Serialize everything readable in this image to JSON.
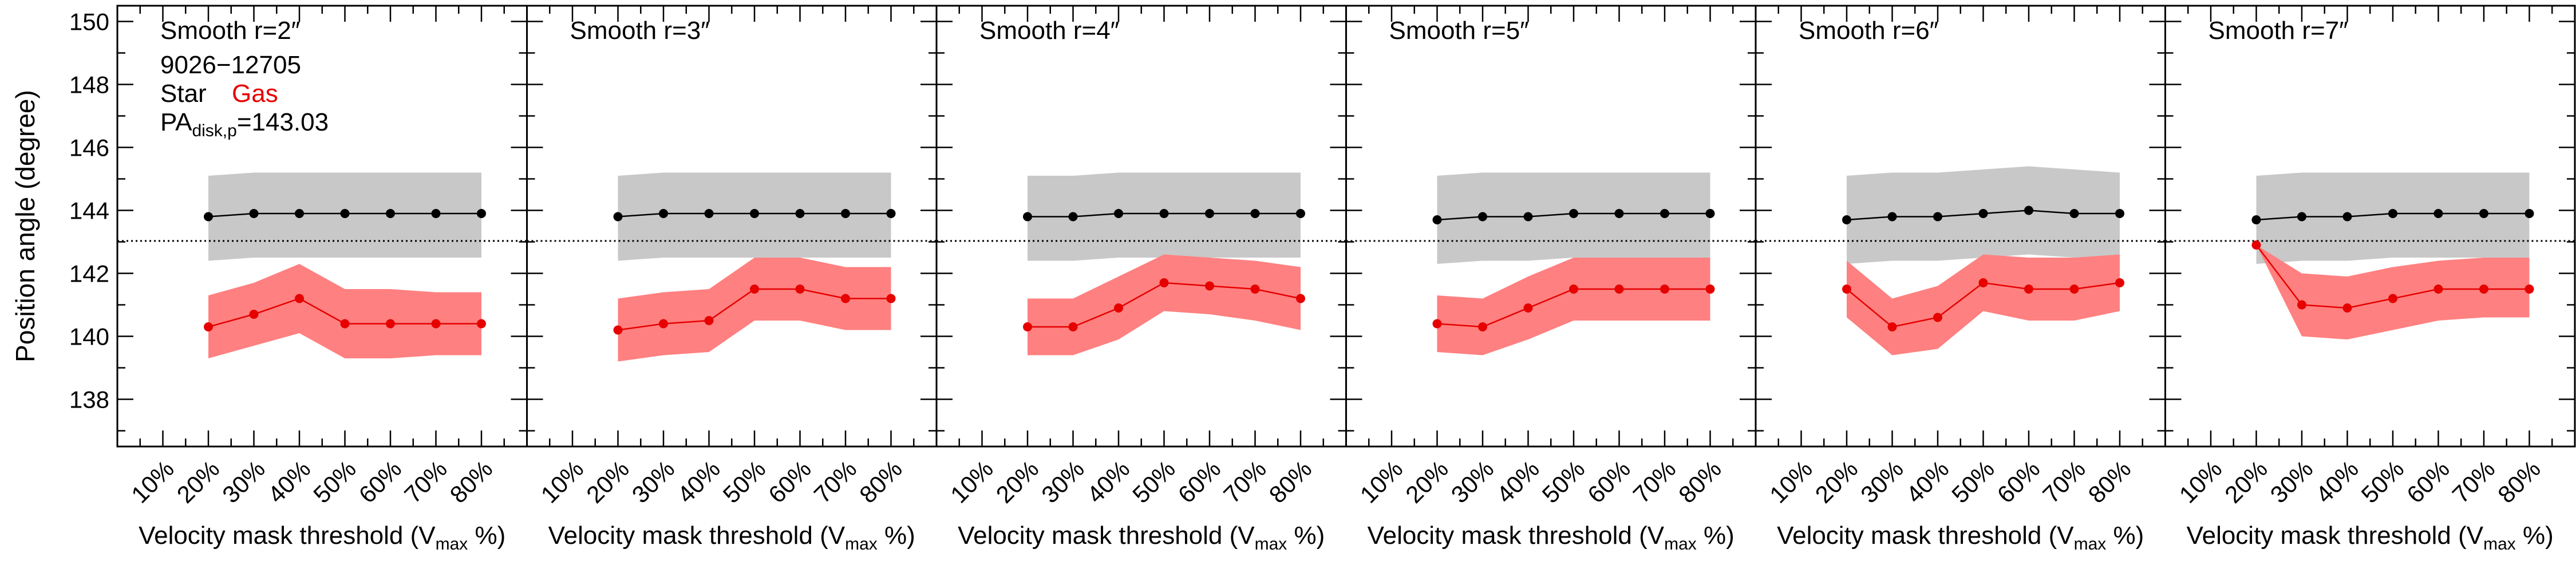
{
  "figure": {
    "ylabel": "Position angle (degree)",
    "xlabel_prefix": "Velocity mask threshold (V",
    "xlabel_sub": "max",
    "xlabel_suffix": " %)",
    "info": {
      "id": "9026−12705",
      "star": "Star",
      "gas": "Gas",
      "pa_prefix": "PA",
      "pa_sub": "disk,p",
      "pa_value": "=143.03"
    },
    "colors": {
      "star": "#000000",
      "gas": "#e60000",
      "star_band": "#c8c8c8",
      "gas_band": "#ff8080"
    }
  },
  "chart_data": {
    "type": "line",
    "ylim": [
      136.5,
      150.5
    ],
    "y_ticks": [
      138,
      140,
      142,
      144,
      146,
      148,
      150
    ],
    "x_categories": [
      "10%",
      "20%",
      "30%",
      "40%",
      "50%",
      "60%",
      "70%",
      "80%"
    ],
    "x_values": [
      10,
      20,
      30,
      40,
      50,
      60,
      70,
      80
    ],
    "reference_line": 143.03,
    "panels": [
      {
        "title": "Smooth r=2″",
        "star": [
          143.8,
          143.9,
          143.9,
          143.9,
          143.9,
          143.9,
          143.9
        ],
        "star_low": [
          142.4,
          142.5,
          142.5,
          142.5,
          142.5,
          142.5,
          142.5
        ],
        "star_high": [
          145.1,
          145.2,
          145.2,
          145.2,
          145.2,
          145.2,
          145.2
        ],
        "gas": [
          140.3,
          140.7,
          141.2,
          140.4,
          140.4,
          140.4,
          140.4
        ],
        "gas_low": [
          139.3,
          139.7,
          140.1,
          139.3,
          139.3,
          139.4,
          139.4
        ],
        "gas_high": [
          141.3,
          141.7,
          142.3,
          141.5,
          141.5,
          141.4,
          141.4
        ]
      },
      {
        "title": "Smooth r=3″",
        "star": [
          143.8,
          143.9,
          143.9,
          143.9,
          143.9,
          143.9,
          143.9
        ],
        "star_low": [
          142.4,
          142.5,
          142.5,
          142.5,
          142.5,
          142.5,
          142.5
        ],
        "star_high": [
          145.1,
          145.2,
          145.2,
          145.2,
          145.2,
          145.2,
          145.2
        ],
        "gas": [
          140.2,
          140.4,
          140.5,
          141.5,
          141.5,
          141.2,
          141.2
        ],
        "gas_low": [
          139.2,
          139.4,
          139.5,
          140.5,
          140.5,
          140.2,
          140.2
        ],
        "gas_high": [
          141.2,
          141.4,
          141.5,
          142.5,
          142.5,
          142.2,
          142.2
        ]
      },
      {
        "title": "Smooth r=4″",
        "star": [
          143.8,
          143.8,
          143.9,
          143.9,
          143.9,
          143.9,
          143.9
        ],
        "star_low": [
          142.4,
          142.4,
          142.5,
          142.5,
          142.5,
          142.5,
          142.5
        ],
        "star_high": [
          145.1,
          145.1,
          145.2,
          145.2,
          145.2,
          145.2,
          145.2
        ],
        "gas": [
          140.3,
          140.3,
          140.9,
          141.7,
          141.6,
          141.5,
          141.2
        ],
        "gas_low": [
          139.4,
          139.4,
          139.9,
          140.8,
          140.7,
          140.5,
          140.2
        ],
        "gas_high": [
          141.2,
          141.2,
          141.9,
          142.6,
          142.5,
          142.4,
          142.2
        ]
      },
      {
        "title": "Smooth r=5″",
        "star": [
          143.7,
          143.8,
          143.8,
          143.9,
          143.9,
          143.9,
          143.9
        ],
        "star_low": [
          142.3,
          142.4,
          142.4,
          142.5,
          142.5,
          142.5,
          142.5
        ],
        "star_high": [
          145.1,
          145.2,
          145.2,
          145.2,
          145.2,
          145.2,
          145.2
        ],
        "gas": [
          140.4,
          140.3,
          140.9,
          141.5,
          141.5,
          141.5,
          141.5
        ],
        "gas_low": [
          139.5,
          139.4,
          139.9,
          140.5,
          140.5,
          140.5,
          140.5
        ],
        "gas_high": [
          141.3,
          141.2,
          141.9,
          142.5,
          142.5,
          142.5,
          142.5
        ]
      },
      {
        "title": "Smooth r=6″",
        "star": [
          143.7,
          143.8,
          143.8,
          143.9,
          144.0,
          143.9,
          143.9
        ],
        "star_low": [
          142.3,
          142.4,
          142.4,
          142.5,
          142.6,
          142.5,
          142.5
        ],
        "star_high": [
          145.1,
          145.2,
          145.2,
          145.3,
          145.4,
          145.3,
          145.2
        ],
        "gas": [
          141.5,
          140.3,
          140.6,
          141.7,
          141.5,
          141.5,
          141.7
        ],
        "gas_low": [
          140.6,
          139.4,
          139.6,
          140.8,
          140.5,
          140.5,
          140.8
        ],
        "gas_high": [
          142.4,
          141.2,
          141.6,
          142.6,
          142.5,
          142.5,
          142.6
        ]
      },
      {
        "title": "Smooth r=7″",
        "star": [
          143.7,
          143.8,
          143.8,
          143.9,
          143.9,
          143.9,
          143.9
        ],
        "star_low": [
          142.3,
          142.4,
          142.4,
          142.5,
          142.5,
          142.5,
          142.5
        ],
        "star_high": [
          145.1,
          145.2,
          145.2,
          145.2,
          145.2,
          145.2,
          145.2
        ],
        "gas": [
          142.9,
          141.0,
          140.9,
          141.2,
          141.5,
          141.5,
          141.5
        ],
        "gas_low": [
          142.9,
          140.0,
          139.9,
          140.2,
          140.5,
          140.6,
          140.6
        ],
        "gas_high": [
          142.9,
          142.0,
          141.9,
          142.2,
          142.4,
          142.5,
          142.5
        ]
      }
    ]
  }
}
